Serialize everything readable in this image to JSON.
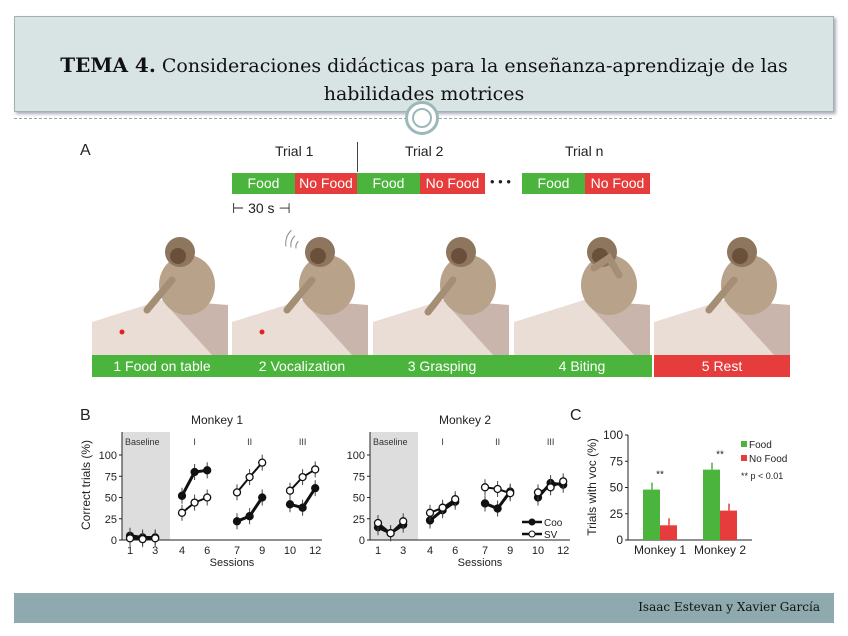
{
  "header": {
    "title_bold": "TEMA 4.",
    "title_rest": " Consideraciones didácticas para la enseñanza-aprendizaje de las habilidades motrices"
  },
  "footer": {
    "authors": "Isaac Estevan y Xavier García"
  },
  "panelA": {
    "letter": "A",
    "trials": [
      "Trial 1",
      "Trial 2",
      "Trial n"
    ],
    "timeline": [
      "Food",
      "No Food",
      "Food",
      "No Food",
      "Food",
      "No Food"
    ],
    "ellipsis": "• • •",
    "scale": "30 s",
    "steps": [
      "1  Food on table",
      "2  Vocalization",
      "3  Grasping",
      "4  Biting",
      "5  Rest"
    ]
  },
  "colors": {
    "green": "#4bb43c",
    "red": "#e63c3c",
    "baseline": "#dddddd"
  },
  "chart_data": [
    {
      "type": "line",
      "panel": "B",
      "title": "Monkey 1",
      "xlabel": "Sessions",
      "ylabel": "Correct trials (%)",
      "ylim": [
        0,
        100
      ],
      "yticks": [
        "0",
        "25",
        "50",
        "75",
        "100"
      ],
      "xticks": [
        "1",
        "3",
        "4",
        "6",
        "7",
        "9",
        "10",
        "12"
      ],
      "phases": [
        "Baseline",
        "I",
        "II",
        "III"
      ],
      "x": [
        [
          1,
          2,
          3
        ],
        [
          4,
          5,
          6
        ],
        [
          7,
          8,
          9
        ],
        [
          10,
          11,
          12
        ]
      ],
      "series": [
        {
          "name": "Coo",
          "values": [
            [
              5,
              3,
              3
            ],
            [
              52,
              80,
              82
            ],
            [
              22,
              28,
              50
            ],
            [
              42,
              38,
              61
            ]
          ]
        },
        {
          "name": "SV",
          "values": [
            [
              2,
              1,
              2
            ],
            [
              32,
              44,
              50
            ],
            [
              56,
              74,
              91
            ],
            [
              58,
              74,
              83
            ]
          ]
        }
      ]
    },
    {
      "type": "line",
      "panel": "B",
      "title": "Monkey 2",
      "xlabel": "Sessions",
      "ylabel": "",
      "ylim": [
        0,
        100
      ],
      "yticks": [
        "0",
        "25",
        "50",
        "75",
        "100"
      ],
      "xticks": [
        "1",
        "3",
        "4",
        "6",
        "7",
        "9",
        "10",
        "12"
      ],
      "phases": [
        "Baseline",
        "I",
        "II",
        "III"
      ],
      "x": [
        [
          1,
          2,
          3
        ],
        [
          4,
          5,
          6
        ],
        [
          7,
          8,
          9
        ],
        [
          10,
          11,
          12
        ]
      ],
      "series": [
        {
          "name": "Coo",
          "values": [
            [
              15,
              8,
              18
            ],
            [
              23,
              35,
              45
            ],
            [
              43,
              37,
              57
            ],
            [
              50,
              67,
              65
            ]
          ]
        },
        {
          "name": "SV",
          "values": [
            [
              20,
              8,
              22
            ],
            [
              32,
              38,
              48
            ],
            [
              62,
              60,
              55
            ],
            [
              56,
              62,
              69
            ]
          ]
        }
      ],
      "legend": [
        "Coo",
        "SV"
      ]
    },
    {
      "type": "bar",
      "panel": "C",
      "categories": [
        "Monkey 1",
        "Monkey 2"
      ],
      "ylabel": "Trials with voc (%)",
      "ylim": [
        0,
        100
      ],
      "yticks": [
        "0",
        "25",
        "50",
        "75",
        "100"
      ],
      "series": [
        {
          "name": "Food",
          "values": [
            48,
            67
          ]
        },
        {
          "name": "No Food",
          "values": [
            14,
            28
          ]
        }
      ],
      "significance": [
        "**",
        "**"
      ],
      "note": "** p < 0.01",
      "legend_position": "top-right"
    }
  ],
  "letters": {
    "b": "B",
    "c": "C"
  }
}
